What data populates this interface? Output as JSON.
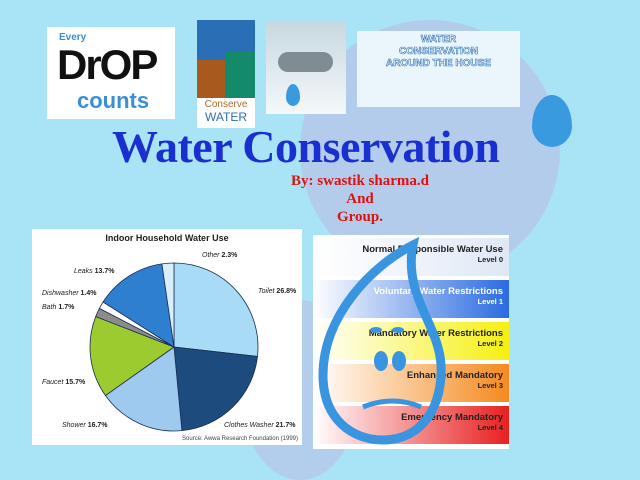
{
  "slide": {
    "title": "Water Conservation",
    "byline": "By: swastik sharma.d",
    "and": "And",
    "group": "Group."
  },
  "logos": [
    {
      "name": "every-drop-counts",
      "text": [
        "Every",
        "DrOP",
        "counts"
      ]
    },
    {
      "name": "conserve-water",
      "text": [
        "Conserve",
        "WATER"
      ]
    },
    {
      "name": "dripping-faucet"
    },
    {
      "name": "water-conservation-around-the-house",
      "text": [
        "WATER",
        "CONSERVATION",
        "AROUND THE HOUSE"
      ]
    }
  ],
  "chart_data": {
    "type": "pie",
    "title": "Indoor Household Water Use",
    "source": "Source: Awwa Research Foundation (1999)",
    "slices": [
      {
        "label": "Toilet",
        "value": 26.8,
        "display": "26.8%",
        "color": "#a8dcf6"
      },
      {
        "label": "Clothes Washer",
        "value": 21.7,
        "display": "21.7%",
        "color": "#1d4b7e"
      },
      {
        "label": "Shower",
        "value": 16.7,
        "display": "16.7%",
        "color": "#9fcaf0"
      },
      {
        "label": "Faucet",
        "value": 15.7,
        "display": "15.7%",
        "color": "#9bcb2e"
      },
      {
        "label": "Bath",
        "value": 1.7,
        "display": "1.7%",
        "color": "#8c8c8c"
      },
      {
        "label": "Dishwasher",
        "value": 1.4,
        "display": "1.4%",
        "color": "#ffffff"
      },
      {
        "label": "Leaks",
        "value": 13.7,
        "display": "13.7%",
        "color": "#2f7fd0"
      },
      {
        "label": "Other",
        "value": 2.3,
        "display": "2.3%",
        "color": "#d8effb"
      }
    ],
    "start": "top",
    "direction": "clockwise"
  },
  "restrictions": [
    {
      "label": "Normal Responsible Water Use",
      "level": "Level 0",
      "color": "#dfe8f6"
    },
    {
      "label": "Voluntary Water Restrictions",
      "level": "Level 1",
      "color": "#2a6be0"
    },
    {
      "label": "Mandatory Water Restrictions",
      "level": "Level 2",
      "color": "#f5f010"
    },
    {
      "label": "Enhanced Mandatory",
      "level": "Level 3",
      "color": "#f58a20"
    },
    {
      "label": "Emergency Mandatory",
      "level": "Level 4",
      "color": "#e82020"
    }
  ]
}
